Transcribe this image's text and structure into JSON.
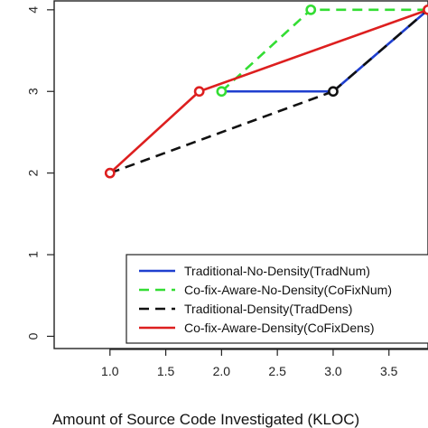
{
  "chart_data": {
    "type": "line",
    "title": "",
    "xlabel": "Amount of Source Code Investigated (KLOC)",
    "ylabel": "",
    "xlim": [
      0.5,
      3.85
    ],
    "ylim": [
      -0.15,
      4.12
    ],
    "x_ticks": [
      "1.0",
      "1.5",
      "2.0",
      "2.5",
      "3.0",
      "3.5"
    ],
    "y_ticks": [
      "0",
      "1",
      "2",
      "3",
      "4"
    ],
    "grid": false,
    "legend_position": "bottom-right",
    "series": [
      {
        "name": "Traditional-No-Density(TradNum)",
        "color": "#1f3fcf",
        "dash": "solid",
        "x": [
          2.0,
          3.0,
          3.85
        ],
        "y": [
          3,
          3,
          4
        ],
        "markers": []
      },
      {
        "name": "Co-fix-Aware-No-Density(CoFixNum)",
        "color": "#33dd33",
        "dash": "dashed",
        "x": [
          2.0,
          2.8,
          3.85
        ],
        "y": [
          3,
          4,
          4
        ],
        "markers": [
          0,
          1
        ]
      },
      {
        "name": "Traditional-Density(TradDens)",
        "color": "#111111",
        "dash": "dashed",
        "x": [
          1.0,
          3.0
        ],
        "y": [
          2,
          3
        ],
        "markers": [
          1
        ]
      },
      {
        "name": "Co-fix-Aware-Density(CoFixDens)",
        "color": "#dd1f1f",
        "dash": "solid",
        "x": [
          1.0,
          1.8,
          3.85
        ],
        "y": [
          2,
          3,
          4
        ],
        "markers": [
          0,
          1,
          2
        ]
      }
    ],
    "overlay_segment": {
      "series": "Traditional-Density(TradDens)",
      "x": [
        3.0,
        3.85
      ],
      "y": [
        3,
        4
      ]
    }
  }
}
